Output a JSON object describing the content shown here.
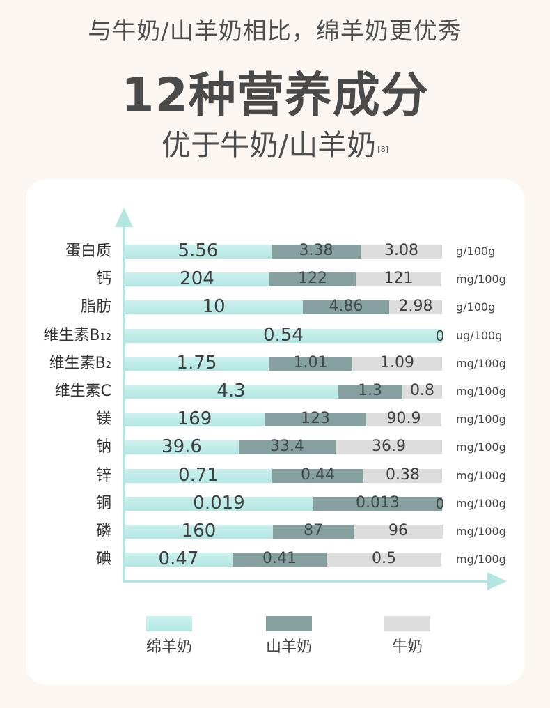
{
  "header": {
    "subtitle": "与牛奶/山羊奶相比，绵羊奶更优秀",
    "headline": "12种营养成分",
    "headline_sub": "优于牛奶/山羊奶",
    "citation": "[8]"
  },
  "colors": {
    "sheep": "#bdebe7",
    "goat": "#85a09e",
    "cow": "#dddddd",
    "axis": "#b3e5e1"
  },
  "chart_data": {
    "type": "bar",
    "stacked": true,
    "orientation": "horizontal",
    "grid": false,
    "legend_position": "bottom",
    "categories": [
      {
        "name": "蛋白质",
        "sub": "",
        "unit": "g/100g"
      },
      {
        "name": "钙",
        "sub": "",
        "unit": "mg/100g"
      },
      {
        "name": "脂肪",
        "sub": "",
        "unit": "g/100g"
      },
      {
        "name": "维生素B",
        "sub": "12",
        "unit": "ug/100g"
      },
      {
        "name": "维生素B",
        "sub": "2",
        "unit": "mg/100g"
      },
      {
        "name": "维生素C",
        "sub": "",
        "unit": "mg/100g"
      },
      {
        "name": "镁",
        "sub": "",
        "unit": "mg/100g"
      },
      {
        "name": "钠",
        "sub": "",
        "unit": "mg/100g"
      },
      {
        "name": "锌",
        "sub": "",
        "unit": "mg/100g"
      },
      {
        "name": "铜",
        "sub": "",
        "unit": "mg/100g"
      },
      {
        "name": "磷",
        "sub": "",
        "unit": "mg/100g"
      },
      {
        "name": "碘",
        "sub": "",
        "unit": "mg/100g"
      }
    ],
    "series": [
      {
        "name": "绵羊奶",
        "key": "sheep",
        "values": [
          "5.56",
          "204",
          "10",
          "0.54",
          "1.75",
          "4.3",
          "169",
          "39.6",
          "0.71",
          "0.019",
          "160",
          "0.47"
        ]
      },
      {
        "name": "山羊奶",
        "key": "goat",
        "values": [
          "3.38",
          "122",
          "4.86",
          "0",
          "1.01",
          "1.3",
          "123",
          "33.4",
          "0.44",
          "0.013",
          "87",
          "0.41"
        ]
      },
      {
        "name": "牛奶",
        "key": "cow",
        "values": [
          "3.08",
          "121",
          "2.98",
          "0",
          "1.09",
          "0.8",
          "90.9",
          "36.9",
          "0.38",
          "0",
          "96",
          "0.5"
        ]
      }
    ],
    "zero_labels": {
      "3": "0",
      "9": "0"
    }
  }
}
